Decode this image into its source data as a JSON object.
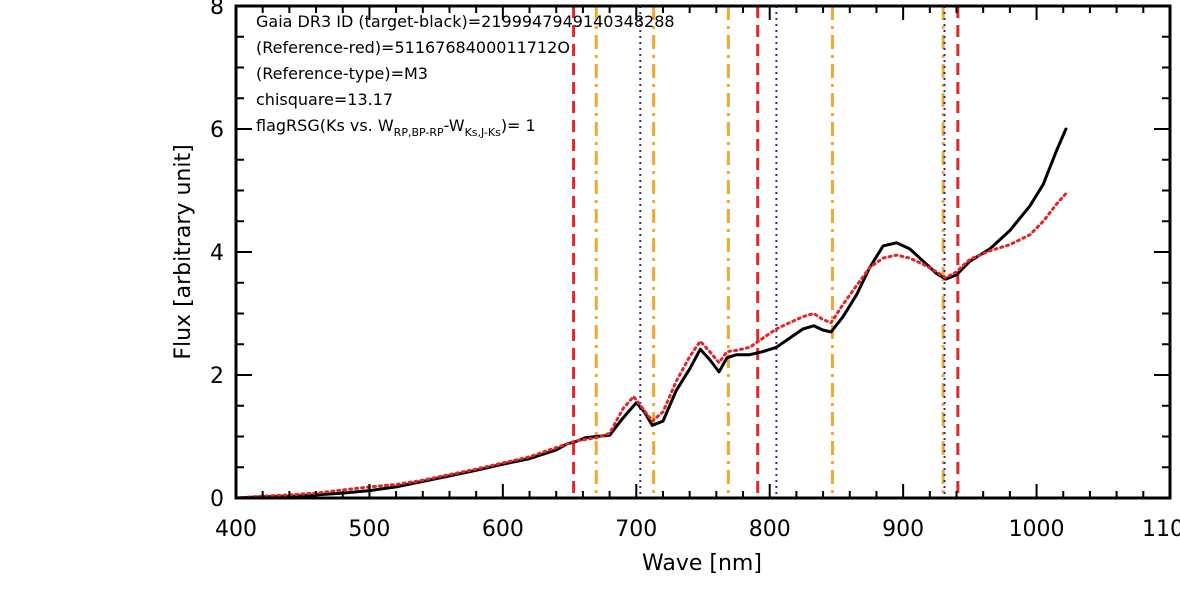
{
  "chart_data": {
    "type": "line",
    "xlabel": "Wave [nm]",
    "ylabel": "Flux [arbitrary unit]",
    "xlim": [
      400,
      1100
    ],
    "ylim": [
      0,
      8
    ],
    "x_ticks": [
      "400",
      "500",
      "600",
      "700",
      "800",
      "900",
      "1000",
      "1100"
    ],
    "y_ticks": [
      "0",
      "2",
      "4",
      "6",
      "8"
    ],
    "annotations": {
      "line1": "Gaia DR3 ID (target-black)=2199947949140348288",
      "line2": "(Reference-red)=5116768400011712O",
      "line3": "(Reference-type)=M3",
      "line4": "chisquare=13.17",
      "line5_prefix": "flagRSG(Ks vs. W",
      "line5_sub1": "RP,BP-RP",
      "line5_mid": "-W",
      "line5_sub2": "Ks,J-Ks",
      "line5_suffix": ")= 1"
    },
    "series": [
      {
        "role": "target",
        "color": "#000000",
        "style": "solid",
        "points": [
          [
            400,
            0.0
          ],
          [
            420,
            0.02
          ],
          [
            440,
            0.03
          ],
          [
            460,
            0.05
          ],
          [
            480,
            0.08
          ],
          [
            500,
            0.12
          ],
          [
            520,
            0.18
          ],
          [
            540,
            0.27
          ],
          [
            560,
            0.36
          ],
          [
            580,
            0.45
          ],
          [
            600,
            0.55
          ],
          [
            620,
            0.64
          ],
          [
            640,
            0.78
          ],
          [
            648,
            0.88
          ],
          [
            655,
            0.92
          ],
          [
            662,
            0.98
          ],
          [
            670,
            1.0
          ],
          [
            680,
            1.02
          ],
          [
            690,
            1.3
          ],
          [
            700,
            1.55
          ],
          [
            706,
            1.4
          ],
          [
            712,
            1.18
          ],
          [
            720,
            1.25
          ],
          [
            730,
            1.75
          ],
          [
            740,
            2.1
          ],
          [
            748,
            2.42
          ],
          [
            755,
            2.25
          ],
          [
            762,
            2.05
          ],
          [
            768,
            2.28
          ],
          [
            775,
            2.33
          ],
          [
            785,
            2.33
          ],
          [
            795,
            2.38
          ],
          [
            805,
            2.45
          ],
          [
            815,
            2.6
          ],
          [
            825,
            2.75
          ],
          [
            833,
            2.8
          ],
          [
            840,
            2.73
          ],
          [
            846,
            2.7
          ],
          [
            855,
            2.95
          ],
          [
            865,
            3.3
          ],
          [
            875,
            3.75
          ],
          [
            885,
            4.1
          ],
          [
            895,
            4.15
          ],
          [
            905,
            4.05
          ],
          [
            915,
            3.85
          ],
          [
            925,
            3.65
          ],
          [
            932,
            3.56
          ],
          [
            940,
            3.63
          ],
          [
            950,
            3.85
          ],
          [
            965,
            4.05
          ],
          [
            980,
            4.35
          ],
          [
            995,
            4.75
          ],
          [
            1005,
            5.1
          ],
          [
            1015,
            5.65
          ],
          [
            1022,
            6.0
          ]
        ]
      },
      {
        "role": "reference",
        "color": "#e0282a",
        "style": "dotted",
        "points": [
          [
            400,
            0.0
          ],
          [
            420,
            0.03
          ],
          [
            440,
            0.05
          ],
          [
            460,
            0.08
          ],
          [
            480,
            0.13
          ],
          [
            500,
            0.18
          ],
          [
            520,
            0.22
          ],
          [
            540,
            0.29
          ],
          [
            560,
            0.38
          ],
          [
            580,
            0.47
          ],
          [
            600,
            0.57
          ],
          [
            620,
            0.67
          ],
          [
            640,
            0.82
          ],
          [
            655,
            0.93
          ],
          [
            670,
            0.98
          ],
          [
            680,
            1.05
          ],
          [
            690,
            1.45
          ],
          [
            698,
            1.65
          ],
          [
            705,
            1.45
          ],
          [
            712,
            1.25
          ],
          [
            720,
            1.4
          ],
          [
            730,
            1.9
          ],
          [
            740,
            2.3
          ],
          [
            748,
            2.55
          ],
          [
            755,
            2.38
          ],
          [
            762,
            2.2
          ],
          [
            768,
            2.38
          ],
          [
            775,
            2.4
          ],
          [
            785,
            2.45
          ],
          [
            795,
            2.6
          ],
          [
            805,
            2.75
          ],
          [
            815,
            2.85
          ],
          [
            825,
            2.95
          ],
          [
            833,
            3.0
          ],
          [
            840,
            2.9
          ],
          [
            846,
            2.85
          ],
          [
            855,
            3.15
          ],
          [
            865,
            3.45
          ],
          [
            875,
            3.75
          ],
          [
            885,
            3.9
          ],
          [
            895,
            3.95
          ],
          [
            905,
            3.9
          ],
          [
            915,
            3.8
          ],
          [
            925,
            3.68
          ],
          [
            932,
            3.58
          ],
          [
            940,
            3.68
          ],
          [
            950,
            3.88
          ],
          [
            965,
            4.02
          ],
          [
            980,
            4.12
          ],
          [
            995,
            4.28
          ],
          [
            1005,
            4.5
          ],
          [
            1015,
            4.78
          ],
          [
            1022,
            4.95
          ]
        ]
      }
    ],
    "vertical_lines": [
      {
        "x": 653,
        "color": "#e0282a",
        "style": "dashed"
      },
      {
        "x": 791,
        "color": "#e0282a",
        "style": "dashed"
      },
      {
        "x": 941,
        "color": "#e0282a",
        "style": "dashed"
      },
      {
        "x": 670,
        "color": "#f0a830",
        "style": "dashdot"
      },
      {
        "x": 713,
        "color": "#f0a830",
        "style": "dashdot"
      },
      {
        "x": 769,
        "color": "#f0a830",
        "style": "dashdot"
      },
      {
        "x": 847,
        "color": "#f0a830",
        "style": "dashdot"
      },
      {
        "x": 930,
        "color": "#f0a830",
        "style": "dashdot"
      },
      {
        "x": 703,
        "color": "#2a2a90",
        "style": "dotted"
      },
      {
        "x": 805,
        "color": "#2a2a90",
        "style": "dotted"
      },
      {
        "x": 931,
        "color": "#2a2a90",
        "style": "dotted"
      }
    ]
  }
}
